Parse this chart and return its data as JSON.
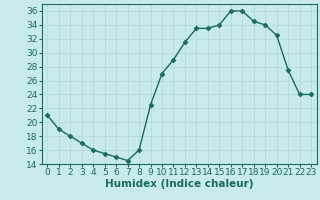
{
  "x": [
    0,
    1,
    2,
    3,
    4,
    5,
    6,
    7,
    8,
    9,
    10,
    11,
    12,
    13,
    14,
    15,
    16,
    17,
    18,
    19,
    20,
    21,
    22,
    23
  ],
  "y": [
    21,
    19,
    18,
    17,
    16,
    15.5,
    15,
    14.5,
    16,
    22.5,
    27,
    29,
    31.5,
    33.5,
    33.5,
    34,
    36,
    36,
    34.5,
    34,
    32.5,
    27.5,
    24,
    24
  ],
  "line_color": "#1a6b5a",
  "marker": "D",
  "marker_size": 2.5,
  "bg_color": "#c8eaea",
  "grid_color": "#b0d8d8",
  "xlabel": "Humidex (Indice chaleur)",
  "xlim": [
    -0.5,
    23.5
  ],
  "ylim": [
    14,
    37
  ],
  "yticks": [
    14,
    16,
    18,
    20,
    22,
    24,
    26,
    28,
    30,
    32,
    34,
    36
  ],
  "xtick_labels": [
    "0",
    "1",
    "2",
    "3",
    "4",
    "5",
    "6",
    "7",
    "8",
    "9",
    "10",
    "11",
    "12",
    "13",
    "14",
    "15",
    "16",
    "17",
    "18",
    "19",
    "20",
    "21",
    "22",
    "23"
  ],
  "xlabel_fontsize": 7.5,
  "tick_fontsize": 6.5,
  "line_width": 1.0
}
